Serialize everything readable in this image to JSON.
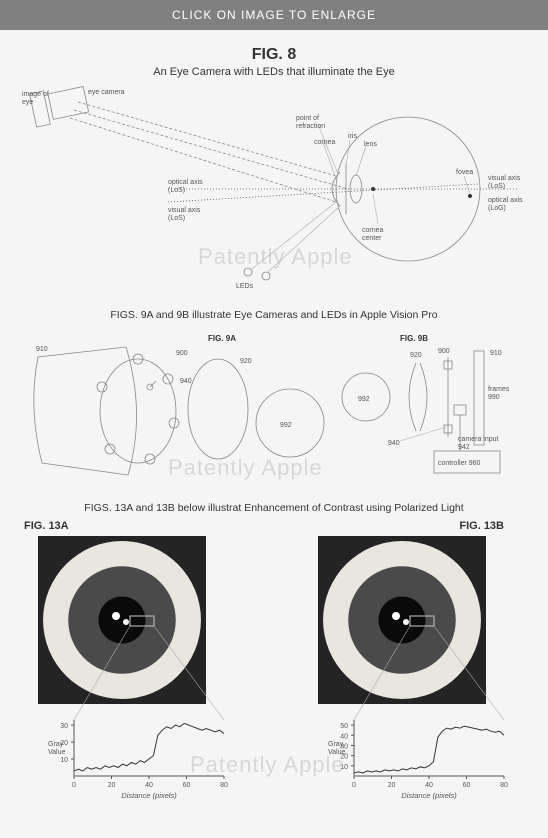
{
  "topbar": {
    "label": "CLICK ON IMAGE TO ENLARGE",
    "bg": "#808080",
    "fg": "#ffffff"
  },
  "watermark": "Patently Apple",
  "page_bg": "#f5f5f5",
  "fig8": {
    "title": "FIG. 8",
    "subtitle": "An Eye Camera with LEDs that illuminate the Eye",
    "labels": {
      "image_of_eye": "image of\neye",
      "eye_camera": "eye camera",
      "point_of_refraction": "point of\nrefraction",
      "cornea": "cornea",
      "iris": "iris",
      "lens": "lens",
      "optical_axis": "optical axis\n(LoS)",
      "visual_axis_left": "visual axis\n(LoS)",
      "fovea": "fovea",
      "visual_axis_right": "visual axis\n(LoS)",
      "optical_axis_right": "optical axis\n(LoG)",
      "cornea_center": "cornea\ncenter",
      "leds": "LEDs"
    },
    "colors": {
      "line": "#888888",
      "dash": "#888888",
      "dot": "#555555",
      "text": "#555555"
    }
  },
  "fig9": {
    "caption": "FIGS. 9A and 9B illustrate Eye Cameras and LEDs in Apple Vision Pro",
    "a": {
      "title": "FIG. 9A",
      "refs": {
        "frame": "910",
        "ring": "900",
        "led": "940",
        "lens": "920",
        "eye": "992"
      }
    },
    "b": {
      "title": "FIG. 9B",
      "refs": {
        "frame": "910",
        "ring": "900",
        "lens": "920",
        "led": "940",
        "eye": "992",
        "frames_ref": "frames\n990",
        "camera_input": "camera input\n942",
        "controller": "controller 960"
      }
    }
  },
  "fig13": {
    "caption": "FIGS. 13A and 13B below illustrat Enhancement of Contrast using Polarized Light",
    "a_title": "FIG. 13A",
    "b_title": "FIG. 13B",
    "chart": {
      "ylabel": "Gray\nValue",
      "xlabel": "Distance (pixels)",
      "xticks": [
        0,
        20,
        40,
        60,
        80
      ],
      "a": {
        "yticks": [
          10,
          20,
          30
        ],
        "series": [
          3,
          4,
          3,
          5,
          4,
          5,
          4,
          6,
          5,
          6,
          5,
          7,
          6,
          8,
          7,
          9,
          8,
          10,
          12,
          24,
          27,
          29,
          28,
          30,
          29,
          31,
          30,
          29,
          28,
          27,
          28,
          27,
          26,
          27,
          25
        ]
      },
      "b": {
        "yticks": [
          10,
          20,
          30,
          40,
          50
        ],
        "series": [
          3,
          4,
          3,
          5,
          4,
          5,
          4,
          6,
          5,
          6,
          5,
          7,
          6,
          8,
          7,
          9,
          8,
          10,
          14,
          38,
          44,
          47,
          46,
          48,
          47,
          49,
          48,
          47,
          46,
          45,
          46,
          44,
          43,
          44,
          40
        ]
      }
    },
    "eye": {
      "sclera": "#e9e6e0",
      "iris": "#4a4a4a",
      "pupil": "#0a0a0a",
      "glint": "#ffffff",
      "box": "#c8c8c8",
      "bg": "#242424"
    }
  }
}
